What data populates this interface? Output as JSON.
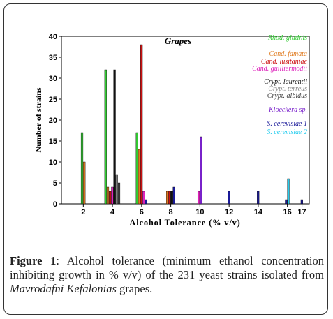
{
  "chart_data": {
    "type": "bar",
    "title": "Grapes",
    "xlabel": "Alcohol Tolerance (% v/v)",
    "ylabel": "Number of strains",
    "xlim": [
      0.5,
      17.5
    ],
    "ylim": [
      0,
      40
    ],
    "xticks": [
      2,
      4,
      6,
      8,
      10,
      12,
      14,
      16,
      17
    ],
    "yticks": [
      0,
      5,
      10,
      15,
      20,
      25,
      30,
      35,
      40
    ],
    "grid": false,
    "legend_position": "right",
    "series": [
      {
        "name": "Rhod. glutinis",
        "color": "#33cc33",
        "points": [
          {
            "x": 2,
            "y": 17
          },
          {
            "x": 4,
            "y": 32
          },
          {
            "x": 6,
            "y": 17
          }
        ]
      },
      {
        "name": "Cand. famata",
        "color": "#e07b20",
        "points": [
          {
            "x": 2,
            "y": 10
          },
          {
            "x": 4,
            "y": 4
          },
          {
            "x": 6,
            "y": 13
          },
          {
            "x": 8,
            "y": 3
          }
        ]
      },
      {
        "name": "Cand. lusitaniae",
        "color": "#cc1111",
        "points": [
          {
            "x": 4,
            "y": 3
          },
          {
            "x": 6,
            "y": 38
          },
          {
            "x": 8,
            "y": 3
          }
        ]
      },
      {
        "name": "Cand. guilliermodii",
        "color": "#dd22bb",
        "points": [
          {
            "x": 4,
            "y": 4
          },
          {
            "x": 6,
            "y": 3
          },
          {
            "x": 10,
            "y": 3
          }
        ]
      },
      {
        "name": "Crypt. laurentii",
        "color": "#111111",
        "points": [
          {
            "x": 4,
            "y": 32
          },
          {
            "x": 8,
            "y": 3
          }
        ]
      },
      {
        "name": "Crypt. terreus",
        "color": "#8a8a8a",
        "points": [
          {
            "x": 4,
            "y": 7
          }
        ]
      },
      {
        "name": "Crypt. albidus",
        "color": "#444444",
        "points": [
          {
            "x": 4,
            "y": 5
          }
        ]
      },
      {
        "name": "Kloeckera sp.",
        "color": "#7a22cc",
        "points": [
          {
            "x": 10,
            "y": 16
          }
        ]
      },
      {
        "name": "S. cerevisiae 1",
        "color": "#1a1a99",
        "points": [
          {
            "x": 6,
            "y": 1
          },
          {
            "x": 8,
            "y": 4
          },
          {
            "x": 12,
            "y": 3
          },
          {
            "x": 14,
            "y": 3
          },
          {
            "x": 16,
            "y": 1
          },
          {
            "x": 17,
            "y": 1
          }
        ]
      },
      {
        "name": "S. cerevisiae 2",
        "color": "#22ccee",
        "points": [
          {
            "x": 16,
            "y": 6
          }
        ]
      }
    ]
  },
  "caption": {
    "label": "Figure 1",
    "text": ": Alcohol tolerance (minimum ethanol concentration inhibiting growth in % v/v) of the 231 yeast strains isolated from ",
    "italic": "Mavrodafni Kefalonias",
    "tail": " grapes."
  }
}
